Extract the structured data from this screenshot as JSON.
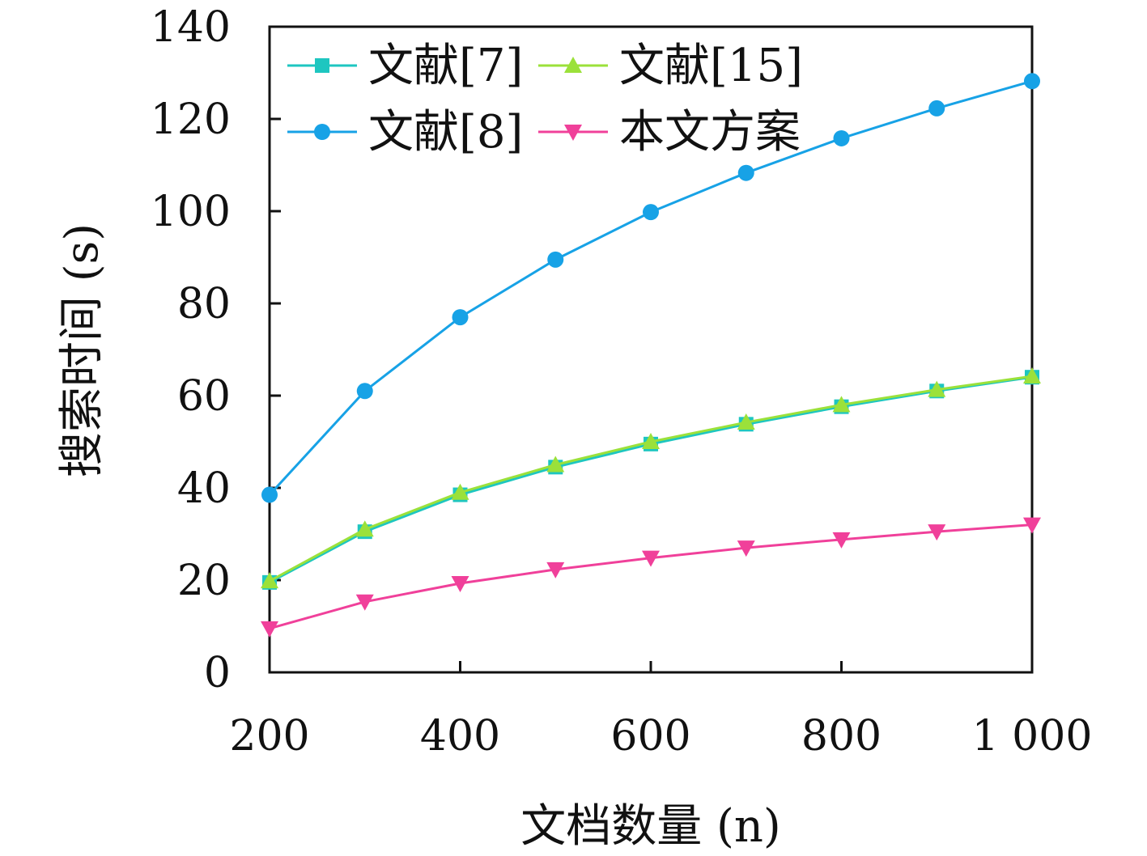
{
  "chart_data": {
    "type": "line",
    "xlabel": "文档数量 (n)",
    "ylabel": "搜索时间 (s)",
    "x": [
      200,
      300,
      400,
      500,
      600,
      700,
      800,
      900,
      1000
    ],
    "xticks": [
      200,
      400,
      600,
      800,
      1000
    ],
    "xtick_labels": [
      "200",
      "400",
      "600",
      "800",
      "1 000"
    ],
    "yticks": [
      0,
      20,
      40,
      60,
      80,
      100,
      120,
      140
    ],
    "ytick_labels": [
      "0",
      "20",
      "40",
      "60",
      "80",
      "100",
      "120",
      "140"
    ],
    "xlim": [
      200,
      1000
    ],
    "ylim": [
      0,
      140
    ],
    "grid": false,
    "legend_position": "top-left",
    "series": [
      {
        "name": "文献[7]",
        "marker": "square",
        "color": "#1ec6c0",
        "values": [
          19.5,
          30.5,
          38.5,
          44.5,
          49.5,
          53.8,
          57.6,
          61.0,
          64.0
        ]
      },
      {
        "name": "文献[15]",
        "marker": "triangle-up",
        "color": "#9be13a",
        "values": [
          19.8,
          31.0,
          39.0,
          45.0,
          50.0,
          54.2,
          58.0,
          61.3,
          64.2
        ]
      },
      {
        "name": "文献[8]",
        "marker": "circle",
        "color": "#17a2e6",
        "values": [
          38.5,
          61.0,
          77.0,
          89.5,
          99.8,
          108.3,
          115.8,
          122.3,
          128.2
        ]
      },
      {
        "name": "本文方案",
        "marker": "triangle-down",
        "color": "#f0409a",
        "values": [
          9.5,
          15.3,
          19.3,
          22.3,
          24.8,
          27.0,
          28.8,
          30.5,
          32.0
        ]
      }
    ],
    "draw_order": [
      2,
      0,
      1,
      3
    ]
  }
}
